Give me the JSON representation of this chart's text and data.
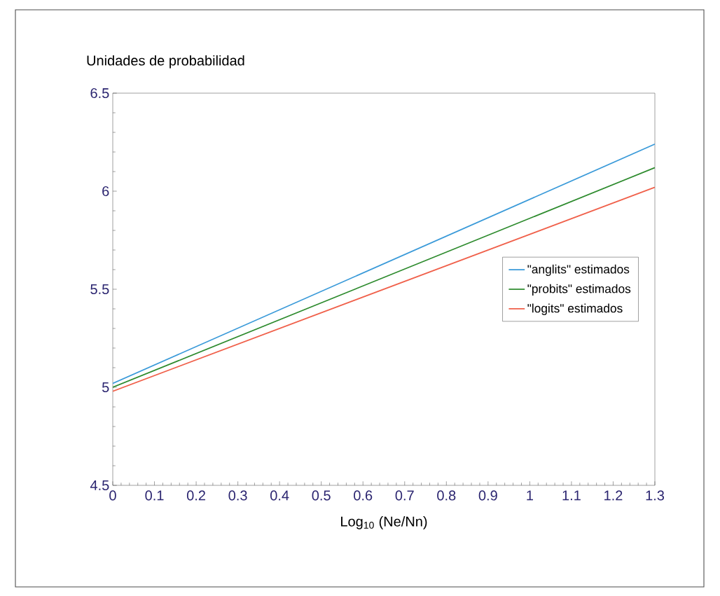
{
  "chart_data": {
    "type": "line",
    "ylabel": "Unidades de probabilidad",
    "xlabel": "Log$_{10}$ (Ne/Nn)",
    "x": [
      0,
      1.3
    ],
    "series": [
      {
        "name": "\"anglits\" estimados",
        "color": "#3a9ad9",
        "values": [
          5.02,
          6.24
        ]
      },
      {
        "name": "\"probits\" estimados",
        "color": "#2e8b2e",
        "values": [
          5.0,
          6.12
        ]
      },
      {
        "name": "\"logits\" estimados",
        "color": "#f0604a",
        "values": [
          4.98,
          6.02
        ]
      }
    ],
    "xlim": [
      0,
      1.3
    ],
    "xticks": [
      0,
      0.1,
      0.2,
      0.3,
      0.4,
      0.5,
      0.6,
      0.7,
      0.8,
      0.9,
      1,
      1.1,
      1.2,
      1.3
    ],
    "ylim": [
      4.5,
      6.5
    ],
    "yticks": [
      4.5,
      5,
      5.5,
      6,
      6.5
    ],
    "grid": false,
    "legend": "right",
    "marker": "none",
    "line_style": "solid"
  }
}
